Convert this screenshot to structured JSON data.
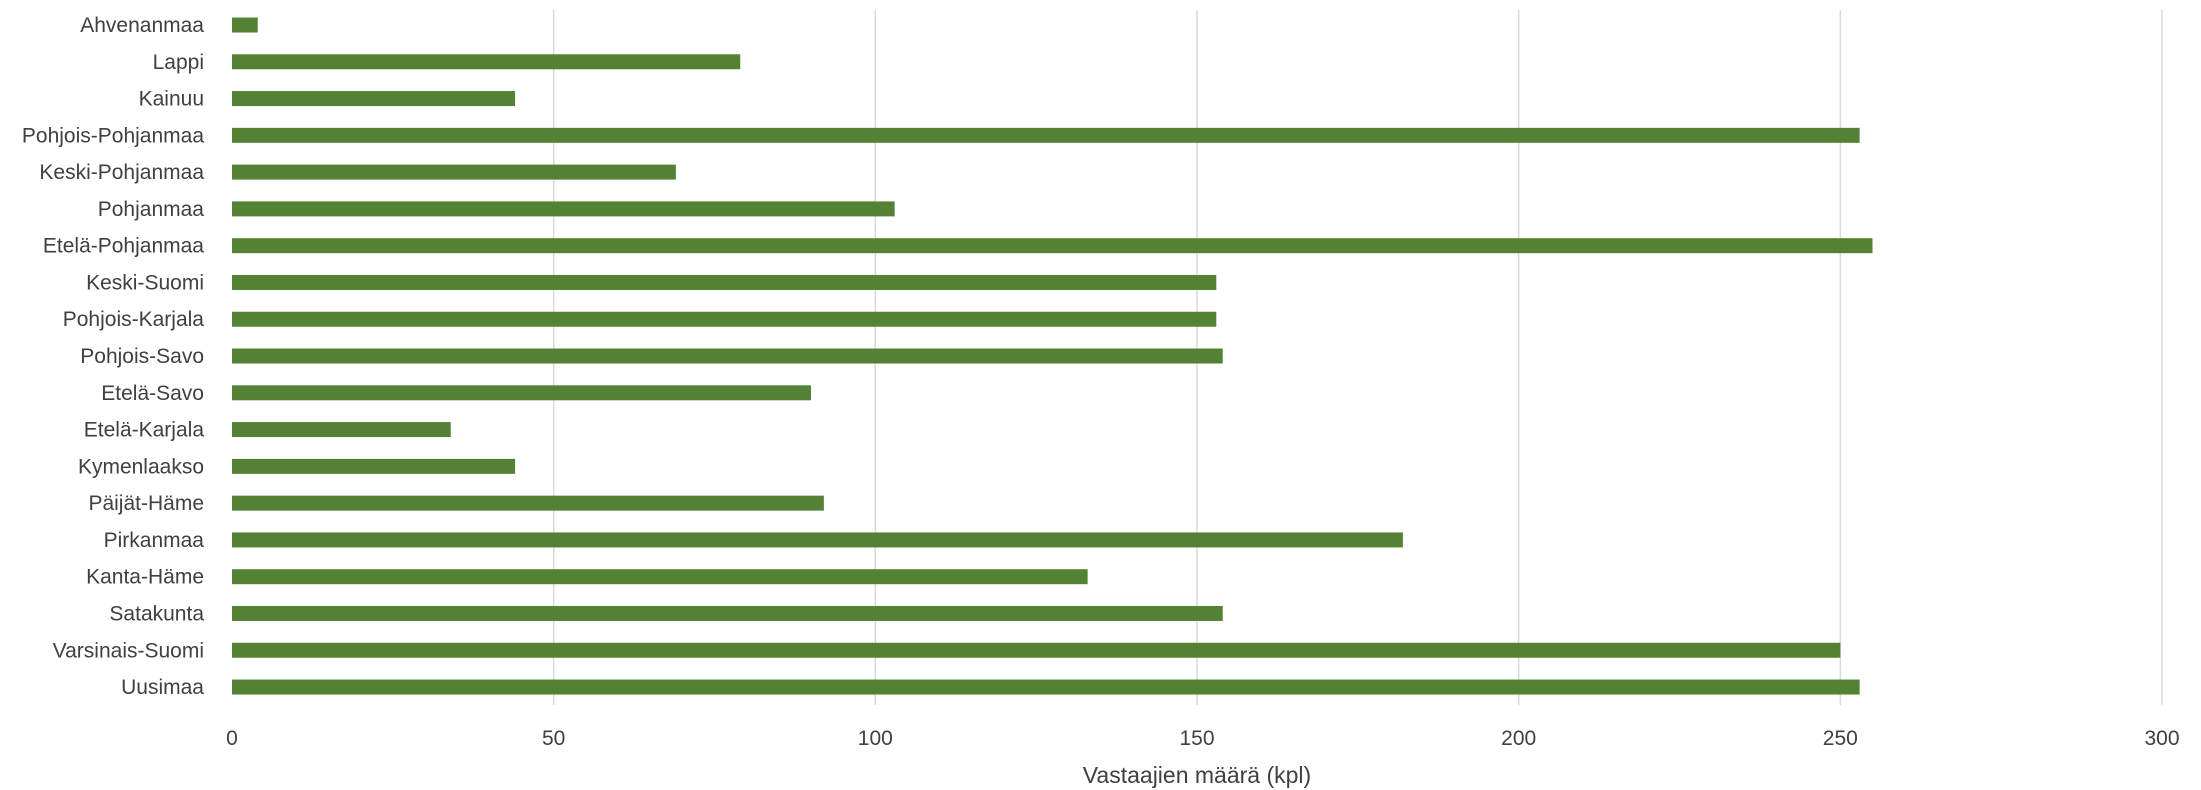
{
  "chart_data": {
    "type": "bar",
    "orientation": "horizontal",
    "categories": [
      "Ahvenanmaa",
      "Lappi",
      "Kainuu",
      "Pohjois-Pohjanmaa",
      "Keski-Pohjanmaa",
      "Pohjanmaa",
      "Etelä-Pohjanmaa",
      "Keski-Suomi",
      "Pohjois-Karjala",
      "Pohjois-Savo",
      "Etelä-Savo",
      "Etelä-Karjala",
      "Kymenlaakso",
      "Päijät-Häme",
      "Pirkanmaa",
      "Kanta-Häme",
      "Satakunta",
      "Varsinais-Suomi",
      "Uusimaa"
    ],
    "values": [
      4,
      79,
      44,
      253,
      69,
      103,
      255,
      153,
      153,
      154,
      90,
      34,
      44,
      92,
      182,
      133,
      154,
      250,
      253
    ],
    "title": "",
    "xlabel": "Vastaajien määrä (kpl)",
    "ylabel": "",
    "xlim": [
      0,
      300
    ],
    "xticks": [
      "0",
      "50",
      "100",
      "150",
      "200",
      "250",
      "300"
    ],
    "grid": "vertical",
    "legend": "none",
    "bar_color": "#548235"
  }
}
